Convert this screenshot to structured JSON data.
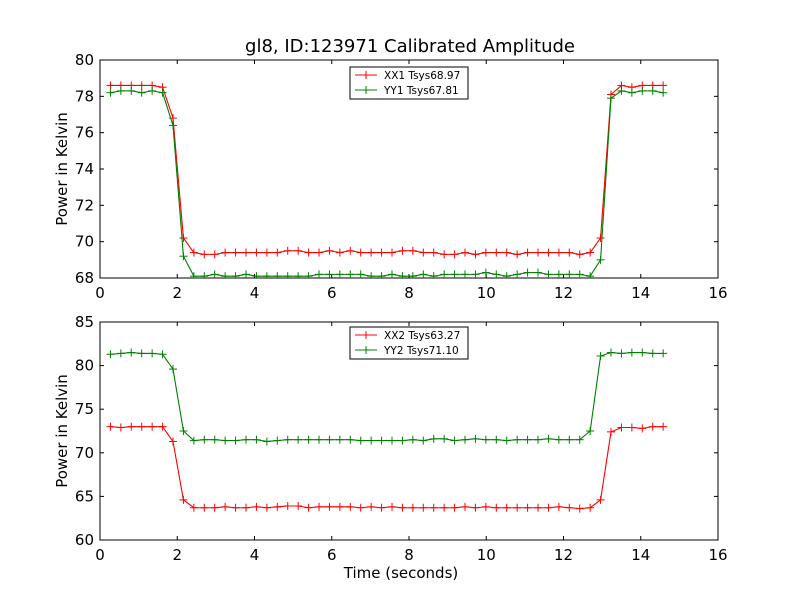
{
  "figure_title": "gl8, ID:123971 Calibrated Amplitude",
  "colors": {
    "red": "#ff0000",
    "green": "#008000"
  },
  "chart_data": [
    {
      "type": "line",
      "title": "gl8, ID:123971 Calibrated Amplitude",
      "xlabel": "",
      "ylabel": "Power in Kelvin",
      "xlim": [
        0,
        16
      ],
      "ylim": [
        68,
        80
      ],
      "xticks": [
        "0",
        "2",
        "4",
        "6",
        "8",
        "10",
        "12",
        "14",
        "16"
      ],
      "yticks": [
        "68",
        "70",
        "72",
        "74",
        "76",
        "78",
        "80"
      ],
      "grid": false,
      "legend": "top-center",
      "x": [
        0.27,
        0.54,
        0.81,
        1.08,
        1.35,
        1.62,
        1.89,
        2.16,
        2.43,
        2.7,
        2.97,
        3.24,
        3.51,
        3.78,
        4.05,
        4.32,
        4.59,
        4.86,
        5.13,
        5.4,
        5.67,
        5.94,
        6.21,
        6.48,
        6.75,
        7.02,
        7.29,
        7.56,
        7.83,
        8.1,
        8.37,
        8.64,
        8.91,
        9.18,
        9.45,
        9.72,
        9.99,
        10.26,
        10.53,
        10.8,
        11.07,
        11.34,
        11.61,
        11.88,
        12.15,
        12.42,
        12.69,
        12.96,
        13.23,
        13.5,
        13.77,
        14.04,
        14.31,
        14.58
      ],
      "series": [
        {
          "name": "XX1 Tsys68.97",
          "color": "#ff0000",
          "values": [
            78.6,
            78.6,
            78.6,
            78.6,
            78.6,
            78.5,
            76.8,
            70.2,
            69.4,
            69.3,
            69.3,
            69.4,
            69.4,
            69.4,
            69.4,
            69.4,
            69.4,
            69.5,
            69.5,
            69.4,
            69.4,
            69.5,
            69.4,
            69.5,
            69.4,
            69.4,
            69.4,
            69.4,
            69.5,
            69.5,
            69.4,
            69.4,
            69.3,
            69.3,
            69.4,
            69.3,
            69.4,
            69.4,
            69.4,
            69.3,
            69.4,
            69.4,
            69.4,
            69.4,
            69.4,
            69.3,
            69.4,
            70.2,
            78.1,
            78.6,
            78.5,
            78.6,
            78.6,
            78.6
          ]
        },
        {
          "name": "YY1 Tsys67.81",
          "color": "#008000",
          "values": [
            78.2,
            78.3,
            78.3,
            78.2,
            78.3,
            78.2,
            76.4,
            69.2,
            68.1,
            68.1,
            68.2,
            68.1,
            68.1,
            68.2,
            68.1,
            68.1,
            68.1,
            68.1,
            68.1,
            68.1,
            68.2,
            68.2,
            68.2,
            68.2,
            68.2,
            68.1,
            68.1,
            68.2,
            68.1,
            68.1,
            68.2,
            68.1,
            68.2,
            68.2,
            68.2,
            68.2,
            68.3,
            68.2,
            68.1,
            68.2,
            68.3,
            68.3,
            68.2,
            68.2,
            68.2,
            68.2,
            68.1,
            69.0,
            77.9,
            78.3,
            78.2,
            78.3,
            78.3,
            78.2
          ]
        }
      ]
    },
    {
      "type": "line",
      "title": "",
      "xlabel": "Time (seconds)",
      "ylabel": "Power in Kelvin",
      "xlim": [
        0,
        16
      ],
      "ylim": [
        60,
        85
      ],
      "xticks": [
        "0",
        "2",
        "4",
        "6",
        "8",
        "10",
        "12",
        "14",
        "16"
      ],
      "yticks": [
        "60",
        "65",
        "70",
        "75",
        "80",
        "85"
      ],
      "grid": false,
      "legend": "top-center",
      "x": [
        0.27,
        0.54,
        0.81,
        1.08,
        1.35,
        1.62,
        1.89,
        2.16,
        2.43,
        2.7,
        2.97,
        3.24,
        3.51,
        3.78,
        4.05,
        4.32,
        4.59,
        4.86,
        5.13,
        5.4,
        5.67,
        5.94,
        6.21,
        6.48,
        6.75,
        7.02,
        7.29,
        7.56,
        7.83,
        8.1,
        8.37,
        8.64,
        8.91,
        9.18,
        9.45,
        9.72,
        9.99,
        10.26,
        10.53,
        10.8,
        11.07,
        11.34,
        11.61,
        11.88,
        12.15,
        12.42,
        12.69,
        12.96,
        13.23,
        13.5,
        13.77,
        14.04,
        14.31,
        14.58
      ],
      "series": [
        {
          "name": "XX2 Tsys63.27",
          "color": "#ff0000",
          "values": [
            73.0,
            72.9,
            73.0,
            73.0,
            73.0,
            73.0,
            71.3,
            64.6,
            63.7,
            63.7,
            63.7,
            63.8,
            63.7,
            63.7,
            63.8,
            63.7,
            63.8,
            63.9,
            63.9,
            63.7,
            63.8,
            63.8,
            63.8,
            63.8,
            63.7,
            63.8,
            63.7,
            63.8,
            63.7,
            63.7,
            63.7,
            63.7,
            63.7,
            63.7,
            63.8,
            63.7,
            63.8,
            63.7,
            63.7,
            63.7,
            63.7,
            63.7,
            63.7,
            63.8,
            63.7,
            63.6,
            63.7,
            64.6,
            72.4,
            72.9,
            72.9,
            72.8,
            73.0,
            73.0
          ]
        },
        {
          "name": "YY2 Tsys71.10",
          "color": "#008000",
          "values": [
            81.3,
            81.4,
            81.5,
            81.4,
            81.4,
            81.3,
            79.6,
            72.5,
            71.4,
            71.5,
            71.5,
            71.4,
            71.4,
            71.5,
            71.5,
            71.3,
            71.4,
            71.5,
            71.5,
            71.5,
            71.5,
            71.5,
            71.5,
            71.5,
            71.4,
            71.4,
            71.4,
            71.4,
            71.4,
            71.5,
            71.4,
            71.6,
            71.6,
            71.4,
            71.5,
            71.6,
            71.5,
            71.5,
            71.4,
            71.5,
            71.5,
            71.5,
            71.6,
            71.5,
            71.5,
            71.5,
            72.5,
            81.1,
            81.5,
            81.4,
            81.5,
            81.5,
            81.4,
            81.4
          ]
        }
      ]
    }
  ]
}
